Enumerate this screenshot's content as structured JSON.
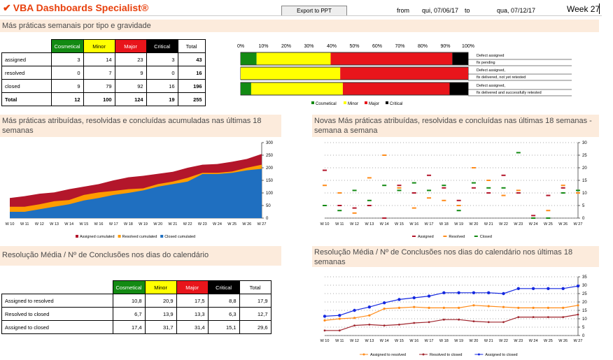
{
  "header": {
    "title": "VBA Dashboards Specialist®",
    "export_button": "Export to PPT",
    "from_label": "from",
    "from_date": "qui, 07/06/17",
    "to_label": "to",
    "to_date": "qua, 07/12/17",
    "week": "Week 27"
  },
  "section1": {
    "title": "Más práticas semanais por tipo e gravidade",
    "table": {
      "headers": [
        "Cosmetical",
        "Minor",
        "Major",
        "Critical",
        "Total"
      ],
      "rows": [
        {
          "label": "assigned",
          "values": [
            "3",
            "14",
            "23",
            "3",
            "43"
          ]
        },
        {
          "label": "resolved",
          "values": [
            "0",
            "7",
            "9",
            "0",
            "16"
          ]
        },
        {
          "label": "closed",
          "values": [
            "9",
            "79",
            "92",
            "16",
            "196"
          ]
        },
        {
          "label": "Total",
          "values": [
            "12",
            "100",
            "124",
            "19",
            "255"
          ]
        }
      ]
    },
    "bar_chart": {
      "axis_labels": [
        "0%",
        "10%",
        "20%",
        "30%",
        "40%",
        "50%",
        "60%",
        "70%",
        "80%",
        "90%",
        "100%"
      ],
      "notes": [
        [
          "Defect assigned",
          "fix pending"
        ],
        [
          "Defect assigned,",
          "fix delivered, not yet retested"
        ],
        [
          "Defect assigned,",
          "fix delivered and successfully retested"
        ]
      ],
      "legend": [
        "Cosmetical",
        "Minor",
        "Major",
        "Critical"
      ]
    }
  },
  "section2": {
    "left_title": "Más práticas atribuídas, resolvidas e concluídas acumuladas nas últimas 18 semanas",
    "right_title": "Novas Más práticas atribuídas, resolvidas e concluídas nas últimas 18 semanas - semana a semana",
    "left_legend": [
      "Assigned cumulated",
      "Resolved cumulated",
      "Closed cumulated"
    ],
    "right_legend": [
      "Assigned",
      "Resolved",
      "Closed"
    ]
  },
  "section3": {
    "left_title": "Resolução Média / Nº de Conclusões nos dias do calendário",
    "right_title": "Resolução Média / Nº de Conclusões nos dias do calendário nos últimas 18 semanas",
    "table": {
      "headers": [
        "Cosmetical",
        "Minor",
        "Major",
        "Critical",
        "Total"
      ],
      "rows": [
        {
          "label": "Assigned to resolved",
          "values": [
            "10,8",
            "20,9",
            "17,5",
            "8,8",
            "17,9"
          ]
        },
        {
          "label": "Resolved to closed",
          "values": [
            "6,7",
            "13,9",
            "13,3",
            "6,3",
            "12,7"
          ]
        },
        {
          "label": "Assigned to closed",
          "values": [
            "17,4",
            "31,7",
            "31,4",
            "15,1",
            "29,6"
          ]
        }
      ]
    },
    "right_legend": [
      "Assigned to resolved",
      "Resolved to closed",
      "Assigned to closed"
    ]
  },
  "colors": {
    "cosmetical": "#138a13",
    "minor": "#ffff00",
    "major": "#e8151b",
    "critical": "#000000",
    "cum_closed": "#1f6fc0",
    "cum_resolved": "#ff9c00",
    "cum_assigned": "#b3162b",
    "line_a2r": "#ff8c1a",
    "line_r2c": "#a0262e",
    "line_a2c": "#1428e0"
  },
  "chart_data": [
    {
      "type": "bar",
      "subtype": "stacked-100",
      "categories": [
        "assigned",
        "resolved",
        "closed"
      ],
      "series": [
        {
          "name": "Cosmetical",
          "values": [
            3,
            0,
            9
          ]
        },
        {
          "name": "Minor",
          "values": [
            14,
            7,
            79
          ]
        },
        {
          "name": "Major",
          "values": [
            23,
            9,
            92
          ]
        },
        {
          "name": "Critical",
          "values": [
            3,
            0,
            16
          ]
        }
      ],
      "xlim": [
        0,
        100
      ]
    },
    {
      "type": "area",
      "x": [
        "W 10",
        "W 11",
        "W 12",
        "W 13",
        "W 14",
        "W 15",
        "W 16",
        "W 17",
        "W 18",
        "W 19",
        "W 20",
        "W 21",
        "W 22",
        "W 23",
        "W 24",
        "W 25",
        "W 26",
        "W 27"
      ],
      "series": [
        {
          "name": "Closed cumulated",
          "values": [
            25,
            25,
            35,
            45,
            55,
            70,
            80,
            92,
            100,
            110,
            125,
            135,
            145,
            175,
            175,
            180,
            190,
            196
          ]
        },
        {
          "name": "Resolved cumulated",
          "values": [
            45,
            45,
            55,
            67,
            72,
            92,
            102,
            108,
            115,
            118,
            135,
            145,
            160,
            180,
            180,
            185,
            200,
            212
          ]
        },
        {
          "name": "Assigned cumulated",
          "values": [
            80,
            87,
            97,
            102,
            115,
            125,
            135,
            150,
            162,
            168,
            176,
            184,
            200,
            212,
            215,
            224,
            235,
            255
          ]
        }
      ],
      "ylim": [
        0,
        300
      ],
      "yticks": [
        "0",
        "50",
        "100",
        "150",
        "200",
        "250",
        "300"
      ]
    },
    {
      "type": "scatter",
      "x": [
        "W 10",
        "W 11",
        "W 12",
        "W 13",
        "W 14",
        "W 15",
        "W 16",
        "W 17",
        "W 18",
        "W 19",
        "W 20",
        "W 21",
        "W 22",
        "W 23",
        "W 24",
        "W 25",
        "W 26",
        "W 27"
      ],
      "series": [
        {
          "name": "Assigned",
          "values": [
            19,
            5,
            4,
            5,
            0,
            13,
            10,
            17,
            12,
            7,
            12,
            10,
            17,
            10,
            1,
            9,
            12,
            10
          ]
        },
        {
          "name": "Resolved",
          "values": [
            13,
            10,
            2,
            16,
            25,
            12,
            4,
            8,
            7,
            5,
            20,
            15,
            9,
            11,
            0,
            3,
            13,
            10
          ]
        },
        {
          "name": "Closed",
          "values": [
            5,
            3,
            11,
            7,
            13,
            11,
            14,
            11,
            13,
            3,
            14,
            12,
            12,
            26,
            0,
            0,
            10,
            11
          ]
        }
      ],
      "ylim": [
        0,
        30
      ],
      "yticks": [
        "0",
        "5",
        "10",
        "15",
        "20",
        "25",
        "30"
      ]
    },
    {
      "type": "line",
      "x": [
        "W 10",
        "W 11",
        "W 12",
        "W 13",
        "W 14",
        "W 15",
        "W 16",
        "W 17",
        "W 18",
        "W 19",
        "W 20",
        "W 21",
        "W 22",
        "W 23",
        "W 24",
        "W 25",
        "W 26",
        "W 27"
      ],
      "series": [
        {
          "name": "Assigned to resolved",
          "values": [
            9,
            10,
            10.5,
            12,
            16,
            16.5,
            17,
            16.5,
            16.5,
            16.5,
            18,
            17.5,
            17,
            16.5,
            16.5,
            16.5,
            16.5,
            18
          ]
        },
        {
          "name": "Resolved to closed",
          "values": [
            3,
            3,
            6,
            6.5,
            6,
            6.5,
            7.5,
            8,
            9.5,
            9.5,
            8.5,
            8,
            8,
            11,
            11,
            11,
            11,
            12.5
          ]
        },
        {
          "name": "Assigned to closed",
          "values": [
            11.5,
            12,
            15,
            17,
            19.5,
            21.5,
            22.5,
            23.5,
            25.5,
            25.5,
            25.5,
            25.5,
            25,
            28,
            28,
            28,
            28,
            29.5
          ]
        }
      ],
      "ylim": [
        0,
        35
      ],
      "yticks": [
        "0",
        "5",
        "10",
        "15",
        "20",
        "25",
        "30",
        "35"
      ]
    }
  ]
}
